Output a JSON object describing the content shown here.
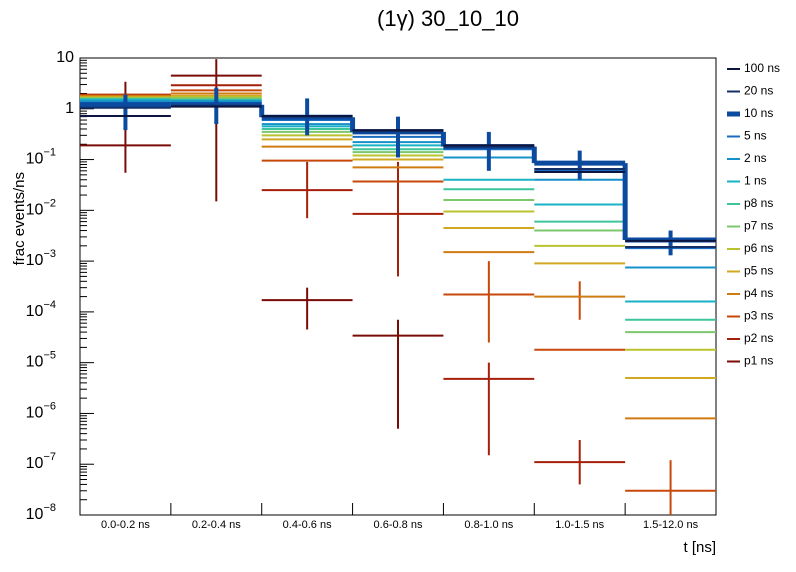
{
  "chart_data": {
    "type": "histogram-steps",
    "title": "(1γ) 30_10_10",
    "xlabel": "t [ns]",
    "ylabel": "frac events/ns",
    "categories": [
      "0.0-0.2 ns",
      "0.2-0.4 ns",
      "0.4-0.6 ns",
      "0.6-0.8 ns",
      "0.8-1.0 ns",
      "1.0-1.5 ns",
      "1.5-12.0 ns"
    ],
    "ylog": true,
    "ylim": [
      1e-08,
      10
    ],
    "yticks": [
      {
        "value": 1e-08,
        "label": "10",
        "exponent": "−8"
      },
      {
        "value": 1e-07,
        "label": "10",
        "exponent": "−7"
      },
      {
        "value": 1e-06,
        "label": "10",
        "exponent": "−6"
      },
      {
        "value": 1e-05,
        "label": "10",
        "exponent": "−5"
      },
      {
        "value": 0.0001,
        "label": "10",
        "exponent": "−4"
      },
      {
        "value": 0.001,
        "label": "10",
        "exponent": "−3"
      },
      {
        "value": 0.01,
        "label": "10",
        "exponent": "−2"
      },
      {
        "value": 0.1,
        "label": "10",
        "exponent": "−1"
      },
      1,
      10
    ],
    "legend": "right",
    "series": [
      {
        "name": "100 ns",
        "color": "#0d1640",
        "values": [
          0.72,
          1.1,
          0.72,
          0.38,
          0.19,
          0.057,
          0.0025
        ]
      },
      {
        "name": "20 ns",
        "color": "#13306b",
        "values": [
          1.05,
          1.15,
          0.7,
          0.36,
          0.18,
          0.065,
          0.0019
        ]
      },
      {
        "name": "10 ns",
        "color": "#0b4a9e",
        "step": true,
        "values": [
          1.2,
          1.2,
          0.68,
          0.35,
          0.18,
          0.085,
          0.0026
        ],
        "error_ranges": [
          [
            0.38,
            1.9
          ],
          [
            0.5,
            2.6
          ],
          [
            0.3,
            1.6
          ],
          [
            0.11,
            0.7
          ],
          [
            0.06,
            0.35
          ],
          [
            0.04,
            0.15
          ],
          [
            0.0013,
            0.004
          ]
        ]
      },
      {
        "name": "5 ns",
        "color": "#1a6cc2",
        "values": [
          1.3,
          1.3,
          0.6,
          0.28,
          0.16,
          0.06,
          0.0018
        ]
      },
      {
        "name": "2 ns",
        "color": "#1590c8",
        "values": [
          1.4,
          1.4,
          0.5,
          0.22,
          0.11,
          0.04,
          0.00075
        ]
      },
      {
        "name": "1 ns",
        "color": "#17b2c6",
        "values": [
          1.5,
          1.45,
          0.45,
          0.19,
          0.04,
          0.013,
          0.00016
        ]
      },
      {
        "name": "p8 ns",
        "color": "#3cc49c",
        "values": [
          1.55,
          1.5,
          0.4,
          0.16,
          0.026,
          0.006,
          7e-05
        ]
      },
      {
        "name": "p7 ns",
        "color": "#7cc76c",
        "values": [
          1.6,
          1.6,
          0.35,
          0.14,
          0.016,
          0.004,
          4e-05
        ]
      },
      {
        "name": "p6 ns",
        "color": "#b8c32e",
        "values": [
          1.65,
          1.7,
          0.3,
          0.12,
          0.0095,
          0.002,
          1.8e-05
        ]
      },
      {
        "name": "p5 ns",
        "color": "#d0a822",
        "values": [
          1.7,
          1.8,
          0.25,
          0.1,
          0.0045,
          0.0009,
          5e-06
        ]
      },
      {
        "name": "p4 ns",
        "color": "#d07a12",
        "values": [
          1.8,
          2.0,
          0.18,
          0.07,
          0.0015,
          0.0002,
          8e-07
        ]
      },
      {
        "name": "p3 ns",
        "color": "#c8480a",
        "values": [
          1.85,
          2.3,
          0.095,
          0.037,
          0.00022,
          1.8e-05,
          3e-08
        ],
        "error_ranges": [
          null,
          null,
          null,
          null,
          [
            2.5e-05,
            0.001
          ],
          [
            7e-05,
            0.0004
          ],
          [
            1e-08,
            1.2e-07
          ]
        ]
      },
      {
        "name": "p2 ns",
        "color": "#a4200a",
        "values": [
          1.9,
          2.9,
          0.025,
          0.0085,
          4.8e-06,
          1.1e-07,
          null
        ],
        "error_ranges": [
          null,
          null,
          [
            0.007,
            0.09
          ],
          [
            0.0005,
            0.09
          ],
          [
            1.5e-07,
            1e-05
          ],
          [
            4e-08,
            3e-07
          ],
          null
        ]
      },
      {
        "name": "p1 ns",
        "color": "#7a0c08",
        "values": [
          0.19,
          4.5,
          0.00017,
          3.4e-05,
          null,
          null,
          null
        ],
        "error_ranges": [
          [
            0.055,
            3.4
          ],
          [
            0.015,
            9.5
          ],
          [
            4.5e-05,
            0.0003
          ],
          [
            5e-07,
            7e-05
          ],
          null,
          null,
          null
        ]
      }
    ]
  }
}
